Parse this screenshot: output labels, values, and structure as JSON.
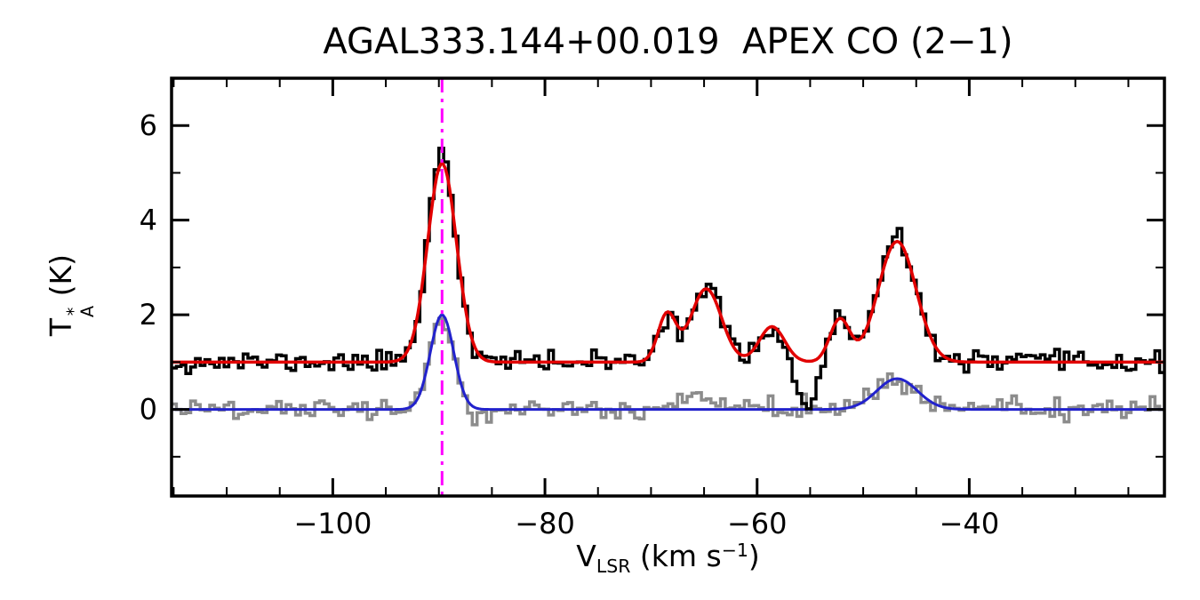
{
  "title": "AGAL333.144+00.019  APEX CO (2−1)",
  "axes": {
    "xlabel": {
      "main": "V",
      "sub": "LSR",
      "unit_open": " (km s",
      "sup": "−1",
      "unit_close": ")"
    },
    "ylabel": {
      "main": "T",
      "sup": "*",
      "sub": "A",
      "unit": " (K)"
    },
    "x_ticks": [
      {
        "v": -100,
        "label": "−100"
      },
      {
        "v": -80,
        "label": "−80"
      },
      {
        "v": -60,
        "label": "−60"
      },
      {
        "v": -40,
        "label": "−40"
      }
    ],
    "y_ticks": [
      {
        "v": 0,
        "label": "0"
      },
      {
        "v": 2,
        "label": "2"
      },
      {
        "v": 4,
        "label": "4"
      },
      {
        "v": 6,
        "label": "6"
      }
    ],
    "x_minor_step": 5,
    "y_minor_step": 1
  },
  "chart_data": {
    "type": "line",
    "title": "AGAL333.144+00.019  APEX CO (2−1)",
    "xlabel": "V_LSR (km s^−1)",
    "ylabel": "T*_A (K)",
    "xlim": [
      -115.2,
      -21.6
    ],
    "ylim": [
      -1.83,
      7.0
    ],
    "grid": false,
    "legend": "none",
    "channel_width": 0.45,
    "noise_sigma": 0.11,
    "baseline_offset_main": 1.0,
    "peaks_main_spectrum": [
      {
        "v": -89.7,
        "T": 5.3
      },
      {
        "v": -68.5,
        "T": 2.0
      },
      {
        "v": -64.8,
        "T": 2.55
      },
      {
        "v": -58.6,
        "T": 1.75
      },
      {
        "v": -52.2,
        "T": 1.9
      },
      {
        "v": -46.8,
        "T": 3.55
      }
    ],
    "absorption_dip_main": {
      "v": -55.4,
      "T": 0.05
    },
    "peaks_secondary_spectrum": [
      {
        "v": -89.7,
        "T": 2.0
      },
      {
        "v": -46.8,
        "T": 0.65
      }
    ],
    "vline": {
      "x": -89.7,
      "color": "#FF00FF",
      "style": "dash-dot"
    },
    "series": [
      {
        "name": "secondary-spectrum",
        "color": "#8C8C8C",
        "style": "histogram",
        "width": 3.5,
        "baseline": 0.0,
        "seed": 29,
        "noise": true,
        "gaussians": [
          {
            "center": -89.7,
            "amp": 2.0,
            "fwhm": 2.6
          },
          {
            "center": -64.8,
            "amp": 0.26,
            "fwhm": 4.0
          },
          {
            "center": -46.8,
            "amp": 0.65,
            "fwhm": 4.5
          }
        ]
      },
      {
        "name": "secondary-fit",
        "color": "#2222CC",
        "style": "smooth",
        "width": 3.0,
        "baseline": 0.0,
        "seed": 0,
        "noise": false,
        "gaussians": [
          {
            "center": -89.7,
            "amp": 2.0,
            "fwhm": 2.6
          },
          {
            "center": -46.8,
            "amp": 0.65,
            "fwhm": 4.5
          }
        ]
      },
      {
        "name": "observed-spectrum",
        "color": "#000000",
        "style": "histogram",
        "width": 3.5,
        "baseline": 1.0,
        "seed": 11,
        "noise": true,
        "gaussians": [
          {
            "center": -89.7,
            "amp": 4.2,
            "fwhm": 3.2
          },
          {
            "center": -89.9,
            "amp": 0.35,
            "fwhm": 1.4
          },
          {
            "center": -68.5,
            "amp": 1.0,
            "fwhm": 2.0
          },
          {
            "center": -64.8,
            "amp": 1.55,
            "fwhm": 3.4
          },
          {
            "center": -58.6,
            "amp": 0.75,
            "fwhm": 2.8
          },
          {
            "center": -55.4,
            "amp": -0.95,
            "fwhm": 2.4
          },
          {
            "center": -52.2,
            "amp": 0.9,
            "fwhm": 2.2
          },
          {
            "center": -46.8,
            "amp": 2.55,
            "fwhm": 4.2
          }
        ]
      },
      {
        "name": "model-fit",
        "color": "#E10000",
        "style": "smooth",
        "width": 3.5,
        "baseline": 1.0,
        "seed": 0,
        "noise": false,
        "gaussians": [
          {
            "center": -89.7,
            "amp": 4.2,
            "fwhm": 3.2
          },
          {
            "center": -68.5,
            "amp": 1.0,
            "fwhm": 2.0
          },
          {
            "center": -64.8,
            "amp": 1.55,
            "fwhm": 3.4
          },
          {
            "center": -58.6,
            "amp": 0.75,
            "fwhm": 2.8
          },
          {
            "center": -52.2,
            "amp": 0.9,
            "fwhm": 2.2
          },
          {
            "center": -46.8,
            "amp": 2.55,
            "fwhm": 4.2
          }
        ]
      }
    ],
    "draw_order": [
      "secondary-spectrum",
      "secondary-fit",
      "observed-spectrum",
      "model-fit"
    ]
  }
}
